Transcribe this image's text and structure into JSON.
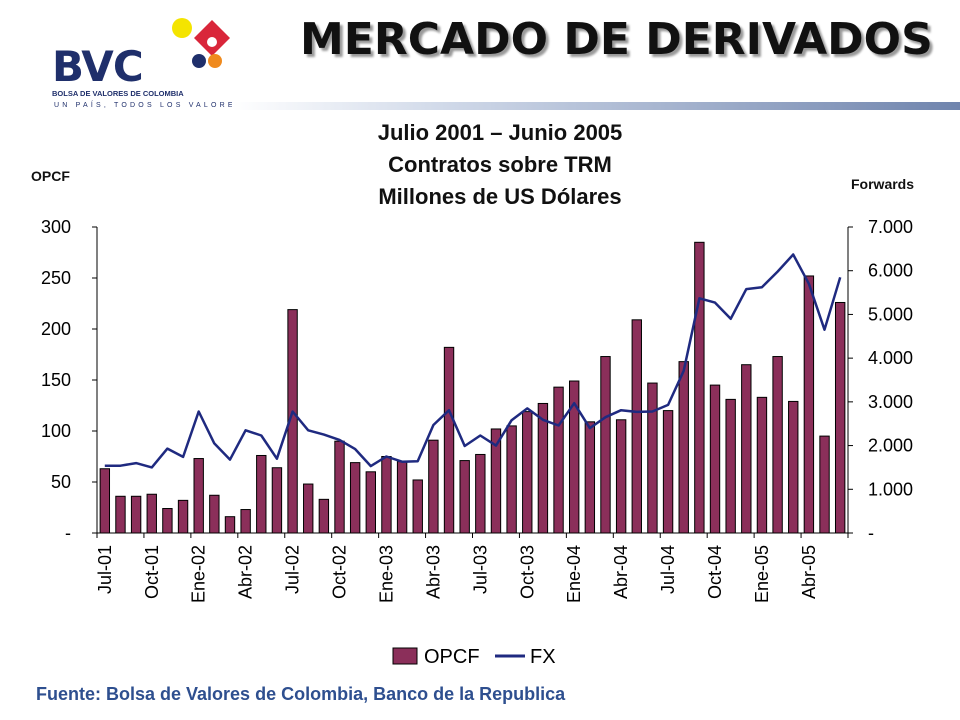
{
  "logo": {
    "text": "BVC",
    "subtitle": "BOLSA DE VALORES DE COLOMBIA",
    "tagline": "UN PAÍS, TODOS LOS VALORES"
  },
  "header": {
    "title": "MERCADO DE DERIVADOS"
  },
  "chart_header": {
    "line1": "Julio 2001 – Junio 2005",
    "line2": "Contratos sobre TRM",
    "line3": "Millones  de  US Dólares",
    "left_axis_name": "OPCF",
    "right_axis_name": "Forwards"
  },
  "chart_data": {
    "type": "bar+line",
    "categories": [
      "Jul-01",
      "Ago-01",
      "Sep-01",
      "Oct-01",
      "Nov-01",
      "Dic-01",
      "Ene-02",
      "Feb-02",
      "Mar-02",
      "Abr-02",
      "May-02",
      "Jun-02",
      "Jul-02",
      "Ago-02",
      "Sep-02",
      "Oct-02",
      "Nov-02",
      "Dic-02",
      "Ene-03",
      "Feb-03",
      "Mar-03",
      "Abr-03",
      "May-03",
      "Jun-03",
      "Jul-03",
      "Ago-03",
      "Sep-03",
      "Oct-03",
      "Nov-03",
      "Dic-03",
      "Ene-04",
      "Feb-04",
      "Mar-04",
      "Abr-04",
      "May-04",
      "Jun-04",
      "Jul-04",
      "Ago-04",
      "Sep-04",
      "Oct-04",
      "Nov-04",
      "Dic-04",
      "Ene-05",
      "Feb-05",
      "Mar-05",
      "Abr-05",
      "May-05",
      "Jun-05"
    ],
    "tick_labels": [
      "Jul-01",
      "Oct-01",
      "Ene-02",
      "Abr-02",
      "Jul-02",
      "Oct-02",
      "Ene-03",
      "Abr-03",
      "Jul-03",
      "Oct-03",
      "Ene-04",
      "Abr-04",
      "Jul-04",
      "Oct-04",
      "Ene-05",
      "Abr-05"
    ],
    "series": [
      {
        "name": "OPCF",
        "kind": "bar",
        "axis": "left",
        "color": "#8b2f5a",
        "values": [
          63,
          36,
          36,
          38,
          24,
          32,
          73,
          37,
          16,
          23,
          76,
          64,
          219,
          48,
          33,
          90,
          69,
          60,
          75,
          70,
          52,
          91,
          182,
          71,
          77,
          102,
          105,
          119,
          127,
          143,
          149,
          109,
          173,
          111,
          209,
          147,
          120,
          168,
          285,
          145,
          131,
          165,
          133,
          173,
          129,
          252,
          95,
          226
        ]
      },
      {
        "name": "FX",
        "kind": "line",
        "axis": "right",
        "color": "#1f2a80",
        "values": [
          1540,
          1540,
          1600,
          1500,
          1930,
          1740,
          2780,
          2050,
          1680,
          2350,
          2230,
          1700,
          2780,
          2350,
          2250,
          2130,
          1920,
          1530,
          1750,
          1630,
          1640,
          2470,
          2810,
          1990,
          2230,
          2000,
          2580,
          2850,
          2590,
          2460,
          2970,
          2400,
          2650,
          2810,
          2770,
          2780,
          2930,
          3710,
          5370,
          5270,
          4900,
          5580,
          5620,
          5980,
          6370,
          5700,
          4650,
          5850
        ]
      }
    ],
    "left_axis": {
      "min": 0,
      "max": 300,
      "ticks": [
        "-",
        "50",
        "100",
        "150",
        "200",
        "250",
        "300"
      ]
    },
    "right_axis": {
      "min": 0,
      "max": 7000,
      "ticks": [
        "-",
        "1.000",
        "2.000",
        "3.000",
        "4.000",
        "5.000",
        "6.000",
        "7.000"
      ]
    },
    "legend": {
      "position": "bottom-center",
      "entries": [
        "OPCF",
        "FX"
      ]
    }
  },
  "footer": {
    "source": "Fuente: Bolsa de Valores de Colombia, Banco de la Republica"
  }
}
